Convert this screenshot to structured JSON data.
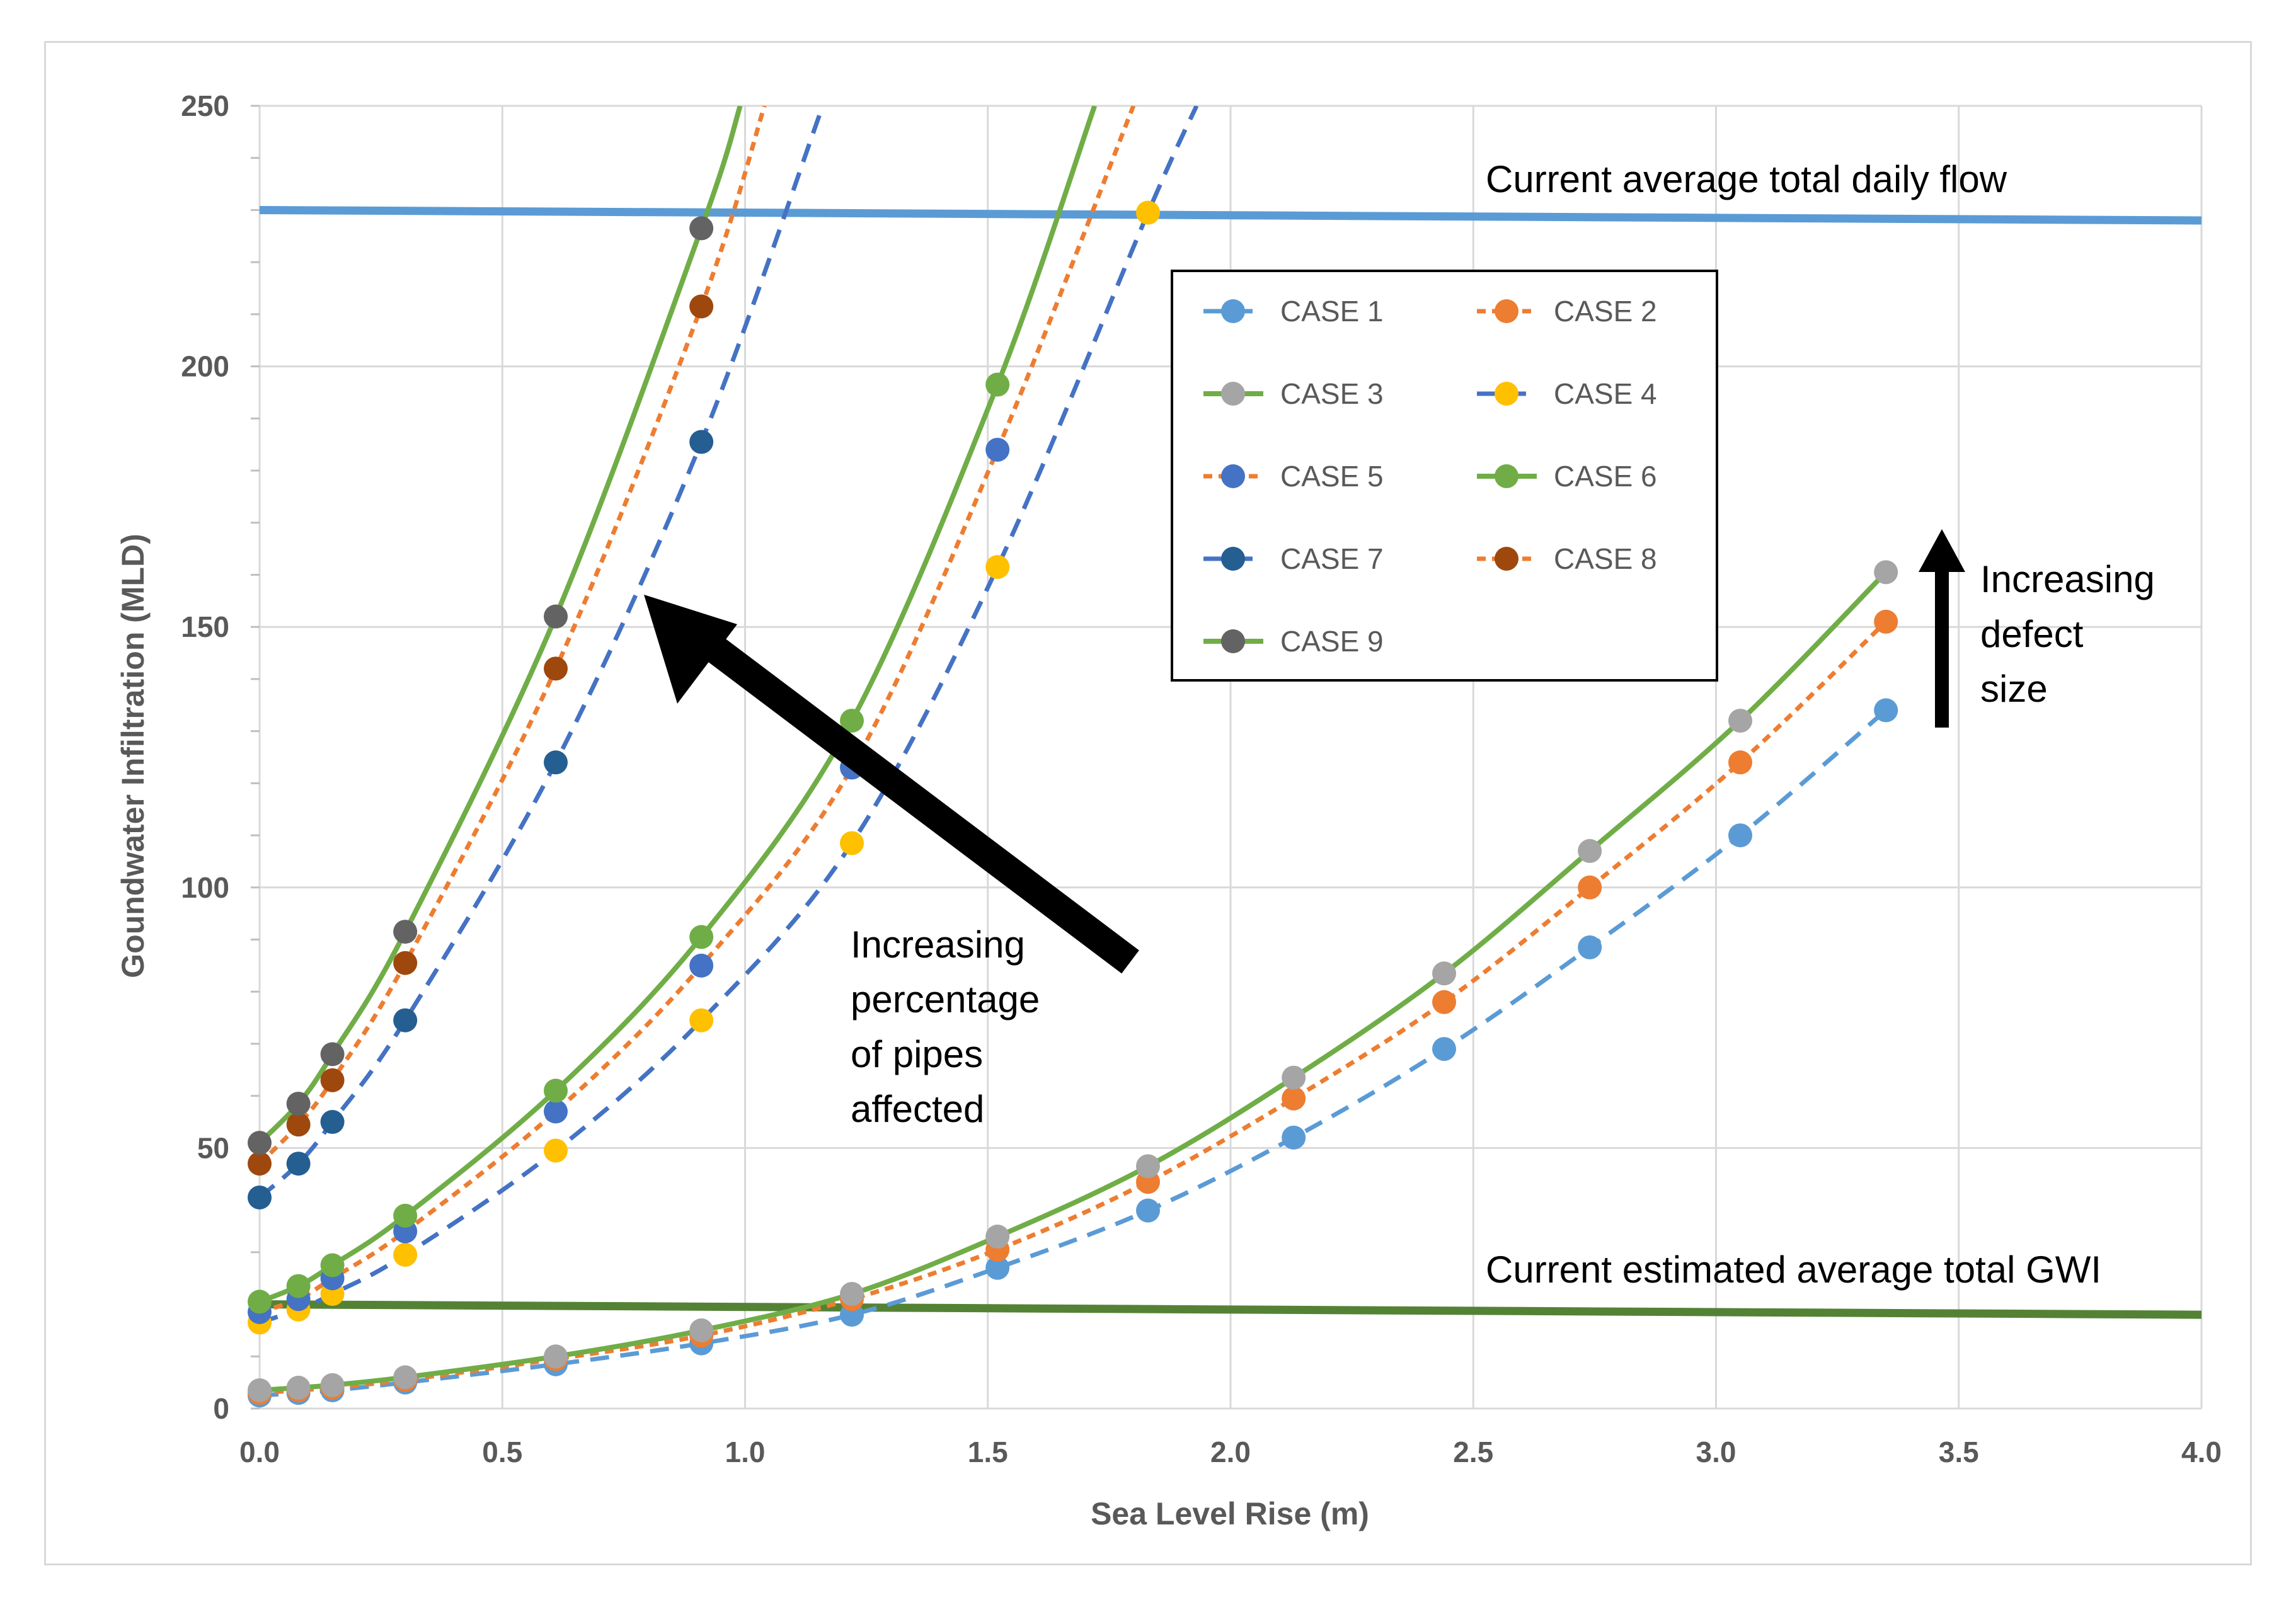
{
  "chart_data": {
    "type": "line",
    "title": "",
    "xlabel": "Sea Level Rise (m)",
    "ylabel": "Goundwater Infiltration (MLD)",
    "xlim": [
      0,
      4
    ],
    "ylim": [
      0,
      250
    ],
    "x_ticks": [
      "0.0",
      "0.5",
      "1.0",
      "1.5",
      "2.0",
      "2.5",
      "3.0",
      "3.5",
      "4.0"
    ],
    "y_ticks": [
      "0",
      "50",
      "100",
      "150",
      "200",
      "250"
    ],
    "grid": true,
    "legend_position": "center-right",
    "reference_lines": [
      {
        "name": "Current average total daily flow",
        "label": "Current average total daily flow",
        "color": "#5b9bd5",
        "x": [
          0,
          4
        ],
        "y": [
          230,
          228
        ]
      },
      {
        "name": "Current estimated average total GWI",
        "label": "Current estimated average total GWI",
        "color": "#548235",
        "x": [
          0,
          4
        ],
        "y": [
          20,
          18
        ]
      }
    ],
    "series": [
      {
        "name": "CASE 1",
        "line_color": "#5b9bd5",
        "marker_color": "#5b9bd5",
        "dash": "dashed",
        "x": [
          0,
          0.08,
          0.15,
          0.3,
          0.61,
          0.91,
          1.22,
          1.52,
          1.83,
          2.13,
          2.44,
          2.74,
          3.05,
          3.35
        ],
        "y": [
          2.5,
          3,
          3.5,
          5,
          8.5,
          12.5,
          18,
          27,
          38,
          52,
          69,
          88.5,
          110,
          134
        ]
      },
      {
        "name": "CASE 2",
        "line_color": "#ed7d31",
        "marker_color": "#ed7d31",
        "dash": "dotted",
        "x": [
          0,
          0.08,
          0.15,
          0.3,
          0.61,
          0.91,
          1.22,
          1.52,
          1.83,
          2.13,
          2.44,
          2.74,
          3.05,
          3.35
        ],
        "y": [
          3,
          3.5,
          4,
          5.5,
          9.5,
          14,
          21,
          30.5,
          43.5,
          59.5,
          78,
          100,
          124,
          151
        ]
      },
      {
        "name": "CASE 3",
        "line_color": "#70ad47",
        "marker_color": "#a5a5a5",
        "dash": "solid",
        "x": [
          0,
          0.08,
          0.15,
          0.3,
          0.61,
          0.91,
          1.22,
          1.52,
          1.83,
          2.13,
          2.44,
          2.74,
          3.05,
          3.35
        ],
        "y": [
          3.5,
          4,
          4.5,
          6,
          10,
          15,
          22,
          33,
          46.5,
          63.5,
          83.5,
          107,
          132,
          160.5
        ]
      },
      {
        "name": "CASE 4",
        "line_color": "#4472c4",
        "marker_color": "#ffc000",
        "dash": "dashed",
        "x": [
          0,
          0.08,
          0.15,
          0.3,
          0.61,
          0.91,
          1.22,
          1.52,
          1.83
        ],
        "y": [
          16.5,
          19,
          22,
          29.5,
          49.5,
          74.5,
          108.5,
          161.5,
          229.5
        ],
        "curve_extends_to": {
          "x": 1.93,
          "y": 250
        }
      },
      {
        "name": "CASE 5",
        "line_color": "#ed7d31",
        "marker_color": "#4472c4",
        "dash": "dotted",
        "x": [
          0,
          0.08,
          0.15,
          0.3,
          0.61,
          0.91,
          1.22,
          1.52
        ],
        "y": [
          18.5,
          21,
          25,
          34,
          57,
          85,
          123,
          184
        ],
        "curve_extends_to": {
          "x": 1.8,
          "y": 250
        }
      },
      {
        "name": "CASE 6",
        "line_color": "#70ad47",
        "marker_color": "#70ad47",
        "dash": "solid",
        "x": [
          0,
          0.08,
          0.15,
          0.3,
          0.61,
          0.91,
          1.22,
          1.52
        ],
        "y": [
          20.5,
          23.5,
          27.5,
          37,
          61,
          90.5,
          132,
          196.5
        ],
        "curve_extends_to": {
          "x": 1.72,
          "y": 250
        }
      },
      {
        "name": "CASE 7",
        "line_color": "#4472c4",
        "marker_color": "#255e91",
        "dash": "dashed",
        "x": [
          0,
          0.08,
          0.15,
          0.3,
          0.61,
          0.91
        ],
        "y": [
          40.5,
          47,
          55,
          74.5,
          124,
          185.5
        ],
        "curve_extends_to": {
          "x": 1.16,
          "y": 250
        }
      },
      {
        "name": "CASE 8",
        "line_color": "#ed7d31",
        "marker_color": "#9e480e",
        "dash": "dotted",
        "x": [
          0,
          0.08,
          0.15,
          0.3,
          0.61,
          0.91
        ],
        "y": [
          47,
          54.5,
          63,
          85.5,
          142,
          211.5
        ],
        "curve_extends_to": {
          "x": 1.04,
          "y": 250
        }
      },
      {
        "name": "CASE 9",
        "line_color": "#70ad47",
        "marker_color": "#636363",
        "dash": "solid",
        "x": [
          0,
          0.08,
          0.15,
          0.3,
          0.61,
          0.91
        ],
        "y": [
          51,
          58.5,
          68,
          91.5,
          152,
          226.5
        ],
        "curve_extends_to": {
          "x": 0.99,
          "y": 250
        }
      }
    ],
    "annotations": [
      {
        "lines": [
          "Increasing",
          "percentage",
          "of pipes",
          "affected"
        ],
        "arrow": "diagonal toward upper-left"
      },
      {
        "lines": [
          "Increasing",
          "defect",
          "size"
        ],
        "arrow": "vertical upward"
      }
    ]
  }
}
